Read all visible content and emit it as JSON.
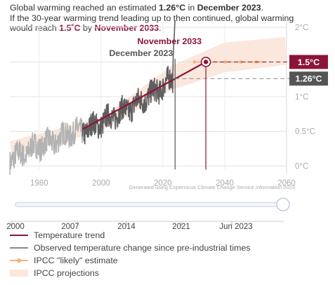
{
  "headline": {
    "p1": "Global warming reached an estimated ",
    "p2": "1.26°C",
    "p3": " in ",
    "p4": "December 2023",
    "p5": ".",
    "p6": "If the 30-year warming trend leading up to then continued, global warming would reach ",
    "p7": "1.5˚C",
    "p8": " by ",
    "p9": "November 2033",
    "p10": "."
  },
  "colors": {
    "trend": "#8b1538",
    "observed": "#5f5f5f",
    "observed_early": "#b3b3b3",
    "ipcc_likely": "#f0b37e",
    "ipcc_band": "#fbe7dc",
    "badge_grey": "#555555",
    "axis_text": "#aaaaaa"
  },
  "chart_data": {
    "type": "line",
    "x_ticks": [
      "1980",
      "2000",
      "2020",
      "2040",
      "2060"
    ],
    "x_tick_values": [
      1980,
      2000,
      2020,
      2040,
      2060
    ],
    "y_ticks": [
      "0°C",
      "0.5°C",
      "1°C",
      "1.5°C",
      "2°C"
    ],
    "y_tick_values": [
      0,
      0.5,
      1,
      1.5,
      2
    ],
    "xlim": [
      1970.5,
      2060
    ],
    "ylim": [
      -0.05,
      2.05
    ],
    "grid": true,
    "series": [
      {
        "name": "Temperature trend",
        "points": [
          [
            1994,
            0.53
          ],
          [
            2033.9,
            1.5
          ]
        ]
      },
      {
        "name": "Observed temperature change since pre-industrial times",
        "anchors": [
          [
            1970,
            0.1
          ],
          [
            1975,
            0.18
          ],
          [
            1980,
            0.3
          ],
          [
            1985,
            0.35
          ],
          [
            1990,
            0.48
          ],
          [
            1994,
            0.5
          ],
          [
            2000,
            0.62
          ],
          [
            2005,
            0.75
          ],
          [
            2010,
            0.85
          ],
          [
            2015,
            1.0
          ],
          [
            2020,
            1.15
          ],
          [
            2023,
            1.26
          ]
        ],
        "split_year": 1994
      },
      {
        "name": "IPCC \"likely\" estimate",
        "start": 2030.2,
        "end": 2053.5,
        "value": 1.5,
        "step": 5
      },
      {
        "name": "IPCC projections",
        "lower": [
          [
            1970,
            0.15
          ],
          [
            2000,
            0.5
          ],
          [
            2023,
            1.1
          ],
          [
            2040,
            1.35
          ],
          [
            2060,
            1.46
          ]
        ],
        "upper": [
          [
            1970,
            0.35
          ],
          [
            2000,
            0.7
          ],
          [
            2023,
            1.45
          ],
          [
            2040,
            1.78
          ],
          [
            2060,
            1.86
          ]
        ]
      }
    ],
    "marker": {
      "x": 2023.95,
      "label": "December 2023"
    },
    "target": {
      "x": 2033.9,
      "y": 1.5,
      "label": "November 2033"
    },
    "badges": [
      {
        "label": "1.5°C",
        "value": 1.5
      },
      {
        "label": "1.26°C",
        "value": 1.26
      }
    ],
    "credit": "Generated using Copernicus Climate Change Service information 2023."
  },
  "slider": {
    "labels": [
      "2000",
      "2007",
      "2014",
      "2021",
      "Jun 2023"
    ],
    "position_fraction": 1.0
  },
  "legend": [
    {
      "label": "Temperature trend",
      "kind": "line",
      "color": "#8b1538"
    },
    {
      "label": "Observed temperature change since pre-industrial times",
      "kind": "line",
      "color": "#888888"
    },
    {
      "label": "IPCC \"likely\" estimate",
      "kind": "dotline",
      "color": "#f0b37e"
    },
    {
      "label": "IPCC projections",
      "kind": "band",
      "color": "#fbe7dc"
    }
  ]
}
